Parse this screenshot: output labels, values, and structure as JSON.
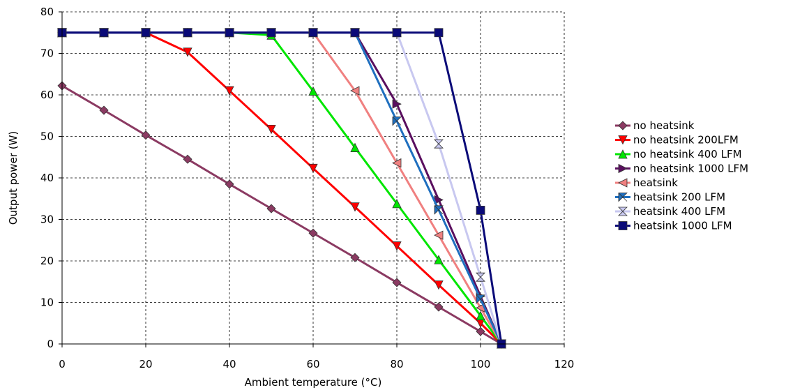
{
  "chart_data": {
    "type": "line",
    "xlabel": "Ambient temperature (°C)",
    "ylabel": "Output power (W)",
    "xlim": [
      0,
      120
    ],
    "ylim": [
      0,
      80
    ],
    "xticks": [
      0,
      20,
      40,
      60,
      80,
      100,
      120
    ],
    "yticks": [
      0,
      10,
      20,
      30,
      40,
      50,
      60,
      70,
      80
    ],
    "grid": true,
    "legend_position": "right",
    "series": [
      {
        "name": "no heatsink",
        "color": "#8B3A62",
        "marker": "diamond",
        "x": [
          0,
          10,
          20,
          30,
          40,
          50,
          60,
          70,
          80,
          90,
          100,
          105
        ],
        "y": [
          62.2,
          56.3,
          50.3,
          44.5,
          38.5,
          32.6,
          26.7,
          20.8,
          14.8,
          8.9,
          3.0,
          0
        ]
      },
      {
        "name": "no heatsink 200LFM",
        "color": "#FF0000",
        "marker": "triangle-down",
        "x": [
          0,
          10,
          20,
          30,
          40,
          50,
          60,
          70,
          80,
          90,
          100,
          105
        ],
        "y": [
          75,
          75,
          75,
          70.3,
          61.0,
          51.7,
          42.3,
          33.0,
          23.6,
          14.2,
          5.0,
          0
        ]
      },
      {
        "name": "no heatsink 400 LFM",
        "color": "#00E600",
        "marker": "triangle-up",
        "x": [
          0,
          10,
          20,
          30,
          40,
          50,
          60,
          70,
          80,
          90,
          100,
          105
        ],
        "y": [
          75,
          75,
          75,
          75,
          75,
          74.4,
          60.9,
          47.3,
          33.8,
          20.3,
          6.8,
          0
        ]
      },
      {
        "name": "no heatsink 1000 LFM",
        "color": "#5A0F5F",
        "marker": "triangle-right",
        "x": [
          0,
          10,
          20,
          30,
          40,
          50,
          60,
          70,
          80,
          90,
          100,
          105
        ],
        "y": [
          75,
          75,
          75,
          75,
          75,
          75,
          75,
          75,
          57.8,
          34.7,
          11.5,
          0
        ]
      },
      {
        "name": "heatsink",
        "color": "#F08080",
        "marker": "triangle-left",
        "x": [
          0,
          10,
          20,
          30,
          40,
          50,
          60,
          70,
          80,
          90,
          100,
          105
        ],
        "y": [
          75,
          75,
          75,
          75,
          75,
          75,
          75,
          61.0,
          43.6,
          26.2,
          8.7,
          0
        ]
      },
      {
        "name": "heatsink 200 LFM",
        "color": "#1F6FBF",
        "marker": "bowtie-h",
        "x": [
          0,
          10,
          20,
          30,
          40,
          50,
          60,
          70,
          80,
          90,
          100,
          105
        ],
        "y": [
          75,
          75,
          75,
          75,
          75,
          75,
          75,
          75,
          53.7,
          32.3,
          10.8,
          0
        ]
      },
      {
        "name": "heatsink 400 LFM",
        "color": "#C8C8F0",
        "marker": "hourglass",
        "x": [
          0,
          10,
          20,
          30,
          40,
          50,
          60,
          70,
          80,
          90,
          100,
          105
        ],
        "y": [
          75,
          75,
          75,
          75,
          75,
          75,
          75,
          75,
          75,
          48.2,
          16.1,
          0
        ]
      },
      {
        "name": "heatsink 1000 LFM",
        "color": "#0A0A78",
        "marker": "square",
        "x": [
          0,
          10,
          20,
          30,
          40,
          50,
          60,
          70,
          80,
          90,
          100,
          105
        ],
        "y": [
          75,
          75,
          75,
          75,
          75,
          75,
          75,
          75,
          75,
          75,
          32.2,
          0
        ]
      }
    ]
  }
}
